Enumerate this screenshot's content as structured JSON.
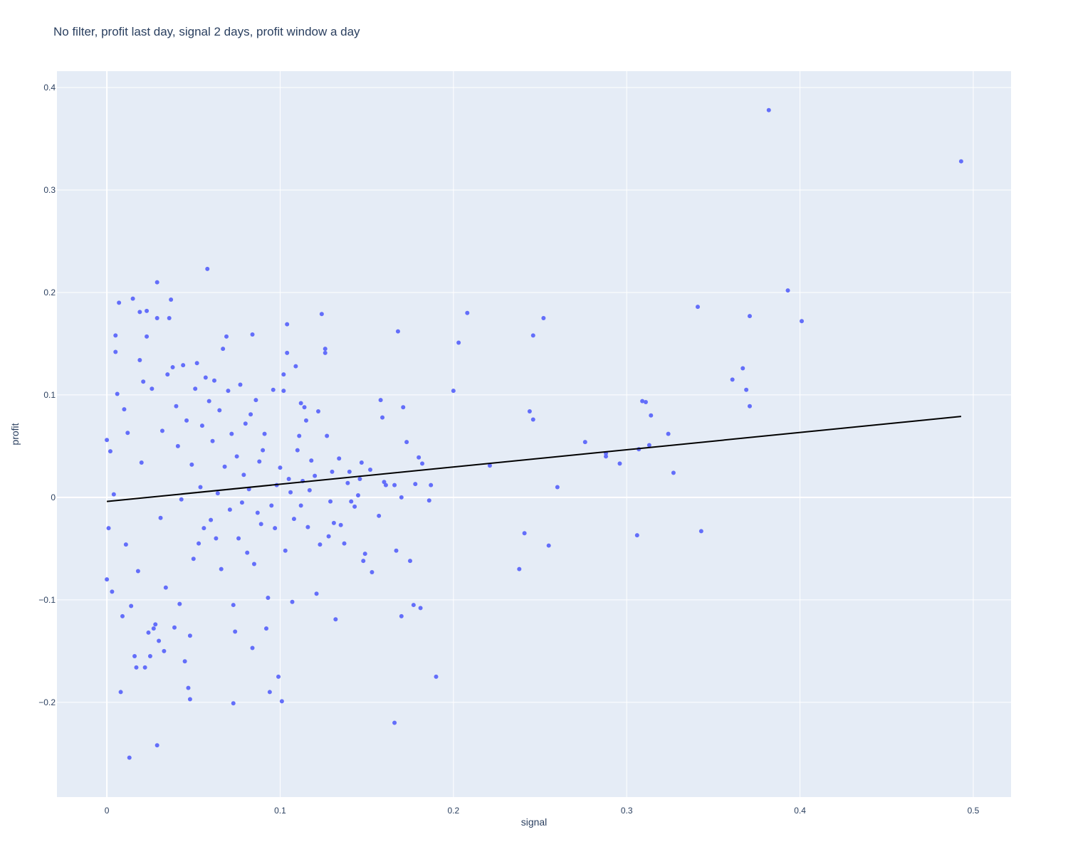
{
  "chart_data": {
    "type": "scatter",
    "title": "No filter, profit last day, signal 2 days, profit window a day",
    "xlabel": "signal",
    "ylabel": "profit",
    "xlim": [
      -0.0288,
      0.5218
    ],
    "ylim": [
      -0.2925,
      0.416
    ],
    "xticks": [
      0,
      0.1,
      0.2,
      0.3,
      0.4,
      0.5
    ],
    "xtick_labels": [
      "0",
      "0.1",
      "0.2",
      "0.3",
      "0.4",
      "0.5"
    ],
    "yticks": [
      -0.2,
      -0.1,
      0,
      0.1,
      0.2,
      0.3,
      0.4
    ],
    "ytick_labels": [
      "−0.2",
      "−0.1",
      "0",
      "0.1",
      "0.2",
      "0.3",
      "0.4"
    ],
    "grid": true,
    "legend": "none",
    "colors": {
      "plot_background": "#e5ecf6",
      "grid": "#ffffff",
      "marker": "#636efa",
      "trendline": "#000000",
      "text": "#2a3f5f"
    },
    "series": [
      {
        "mode": "markers",
        "points": [
          [
            0.382,
            0.378
          ],
          [
            0.493,
            0.328
          ],
          [
            0.393,
            0.202
          ],
          [
            0.401,
            0.172
          ],
          [
            0.341,
            0.186
          ],
          [
            0.371,
            0.177
          ],
          [
            0.367,
            0.126
          ],
          [
            0.361,
            0.115
          ],
          [
            0.369,
            0.105
          ],
          [
            0.371,
            0.089
          ],
          [
            0.309,
            0.094
          ],
          [
            0.311,
            0.093
          ],
          [
            0.314,
            0.08
          ],
          [
            0.324,
            0.062
          ],
          [
            0.313,
            0.051
          ],
          [
            0.307,
            0.047
          ],
          [
            0.327,
            0.024
          ],
          [
            0.343,
            -0.033
          ],
          [
            0.306,
            -0.037
          ],
          [
            0.296,
            0.033
          ],
          [
            0.288,
            0.043
          ],
          [
            0.288,
            0.04
          ],
          [
            0.276,
            0.054
          ],
          [
            0.26,
            0.01
          ],
          [
            0.255,
            -0.047
          ],
          [
            0.252,
            0.175
          ],
          [
            0.246,
            0.158
          ],
          [
            0.244,
            0.084
          ],
          [
            0.246,
            0.076
          ],
          [
            0.241,
            -0.035
          ],
          [
            0.238,
            -0.07
          ],
          [
            0.221,
            0.031
          ],
          [
            0.208,
            0.18
          ],
          [
            0.203,
            0.151
          ],
          [
            0.2,
            0.104
          ],
          [
            0.19,
            -0.175
          ],
          [
            0.187,
            0.012
          ],
          [
            0.186,
            -0.003
          ],
          [
            0.182,
            0.033
          ],
          [
            0.181,
            -0.108
          ],
          [
            0.18,
            0.039
          ],
          [
            0.178,
            0.013
          ],
          [
            0.177,
            -0.105
          ],
          [
            0.175,
            -0.062
          ],
          [
            0.173,
            0.054
          ],
          [
            0.171,
            0.088
          ],
          [
            0.17,
            0.0
          ],
          [
            0.17,
            -0.116
          ],
          [
            0.168,
            0.162
          ],
          [
            0.167,
            -0.052
          ],
          [
            0.166,
            0.012
          ],
          [
            0.166,
            -0.22
          ],
          [
            0.161,
            0.012
          ],
          [
            0.16,
            0.015
          ],
          [
            0.159,
            0.078
          ],
          [
            0.158,
            0.095
          ],
          [
            0.157,
            -0.018
          ],
          [
            0.153,
            -0.073
          ],
          [
            0.152,
            0.027
          ],
          [
            0.149,
            -0.055
          ],
          [
            0.148,
            -0.062
          ],
          [
            0.147,
            0.034
          ],
          [
            0.146,
            0.018
          ],
          [
            0.145,
            0.002
          ],
          [
            0.143,
            -0.009
          ],
          [
            0.141,
            -0.004
          ],
          [
            0.14,
            0.025
          ],
          [
            0.139,
            0.014
          ],
          [
            0.137,
            -0.045
          ],
          [
            0.135,
            -0.027
          ],
          [
            0.134,
            0.038
          ],
          [
            0.132,
            -0.119
          ],
          [
            0.131,
            -0.025
          ],
          [
            0.13,
            0.025
          ],
          [
            0.129,
            -0.004
          ],
          [
            0.128,
            -0.038
          ],
          [
            0.127,
            0.06
          ],
          [
            0.126,
            0.145
          ],
          [
            0.126,
            0.141
          ],
          [
            0.124,
            0.179
          ],
          [
            0.123,
            -0.046
          ],
          [
            0.122,
            0.084
          ],
          [
            0.121,
            -0.094
          ],
          [
            0.12,
            0.021
          ],
          [
            0.118,
            0.036
          ],
          [
            0.117,
            0.007
          ],
          [
            0.116,
            -0.029
          ],
          [
            0.115,
            0.075
          ],
          [
            0.114,
            0.088
          ],
          [
            0.113,
            0.016
          ],
          [
            0.112,
            0.092
          ],
          [
            0.112,
            -0.008
          ],
          [
            0.111,
            0.06
          ],
          [
            0.11,
            0.046
          ],
          [
            0.109,
            0.128
          ],
          [
            0.108,
            -0.021
          ],
          [
            0.107,
            -0.102
          ],
          [
            0.106,
            0.005
          ],
          [
            0.105,
            0.018
          ],
          [
            0.104,
            0.141
          ],
          [
            0.104,
            0.169
          ],
          [
            0.103,
            -0.052
          ],
          [
            0.102,
            0.12
          ],
          [
            0.102,
            0.104
          ],
          [
            0.101,
            -0.199
          ],
          [
            0.1,
            0.029
          ],
          [
            0.099,
            -0.175
          ],
          [
            0.098,
            0.012
          ],
          [
            0.097,
            -0.03
          ],
          [
            0.096,
            0.105
          ],
          [
            0.095,
            -0.008
          ],
          [
            0.094,
            -0.19
          ],
          [
            0.093,
            -0.098
          ],
          [
            0.092,
            -0.128
          ],
          [
            0.091,
            0.062
          ],
          [
            0.09,
            0.046
          ],
          [
            0.089,
            -0.026
          ],
          [
            0.088,
            0.035
          ],
          [
            0.087,
            -0.015
          ],
          [
            0.086,
            0.095
          ],
          [
            0.085,
            -0.065
          ],
          [
            0.084,
            -0.147
          ],
          [
            0.084,
            0.159
          ],
          [
            0.083,
            0.081
          ],
          [
            0.082,
            0.008
          ],
          [
            0.081,
            -0.054
          ],
          [
            0.08,
            0.072
          ],
          [
            0.079,
            0.022
          ],
          [
            0.078,
            -0.005
          ],
          [
            0.077,
            0.11
          ],
          [
            0.076,
            -0.04
          ],
          [
            0.075,
            0.04
          ],
          [
            0.074,
            -0.131
          ],
          [
            0.073,
            -0.201
          ],
          [
            0.073,
            -0.105
          ],
          [
            0.072,
            0.062
          ],
          [
            0.071,
            -0.012
          ],
          [
            0.07,
            0.104
          ],
          [
            0.069,
            0.157
          ],
          [
            0.068,
            0.03
          ],
          [
            0.067,
            0.145
          ],
          [
            0.066,
            -0.07
          ],
          [
            0.065,
            0.085
          ],
          [
            0.064,
            0.004
          ],
          [
            0.063,
            -0.04
          ],
          [
            0.062,
            0.114
          ],
          [
            0.061,
            0.055
          ],
          [
            0.06,
            -0.022
          ],
          [
            0.059,
            0.094
          ],
          [
            0.058,
            0.223
          ],
          [
            0.057,
            0.117
          ],
          [
            0.056,
            -0.03
          ],
          [
            0.055,
            0.07
          ],
          [
            0.054,
            0.01
          ],
          [
            0.053,
            -0.045
          ],
          [
            0.052,
            0.131
          ],
          [
            0.051,
            0.106
          ],
          [
            0.05,
            -0.06
          ],
          [
            0.049,
            0.032
          ],
          [
            0.048,
            -0.135
          ],
          [
            0.048,
            -0.197
          ],
          [
            0.047,
            -0.186
          ],
          [
            0.046,
            0.075
          ],
          [
            0.045,
            -0.16
          ],
          [
            0.044,
            0.129
          ],
          [
            0.043,
            -0.002
          ],
          [
            0.042,
            -0.104
          ],
          [
            0.041,
            0.05
          ],
          [
            0.04,
            0.089
          ],
          [
            0.039,
            -0.127
          ],
          [
            0.038,
            0.127
          ],
          [
            0.037,
            0.193
          ],
          [
            0.036,
            0.175
          ],
          [
            0.035,
            0.12
          ],
          [
            0.034,
            -0.088
          ],
          [
            0.033,
            -0.15
          ],
          [
            0.032,
            0.065
          ],
          [
            0.031,
            -0.02
          ],
          [
            0.03,
            -0.14
          ],
          [
            0.029,
            0.175
          ],
          [
            0.029,
            0.21
          ],
          [
            0.029,
            -0.242
          ],
          [
            0.028,
            -0.124
          ],
          [
            0.027,
            -0.128
          ],
          [
            0.026,
            0.106
          ],
          [
            0.025,
            -0.155
          ],
          [
            0.024,
            -0.132
          ],
          [
            0.023,
            0.182
          ],
          [
            0.023,
            0.157
          ],
          [
            0.022,
            -0.166
          ],
          [
            0.021,
            0.113
          ],
          [
            0.02,
            0.034
          ],
          [
            0.019,
            0.134
          ],
          [
            0.019,
            0.181
          ],
          [
            0.018,
            -0.072
          ],
          [
            0.017,
            -0.166
          ],
          [
            0.016,
            -0.155
          ],
          [
            0.015,
            0.194
          ],
          [
            0.014,
            -0.106
          ],
          [
            0.013,
            -0.254
          ],
          [
            0.012,
            0.063
          ],
          [
            0.011,
            -0.046
          ],
          [
            0.01,
            0.086
          ],
          [
            0.009,
            -0.116
          ],
          [
            0.008,
            -0.19
          ],
          [
            0.007,
            0.19
          ],
          [
            0.006,
            0.101
          ],
          [
            0.005,
            0.158
          ],
          [
            0.005,
            0.142
          ],
          [
            0.004,
            0.003
          ],
          [
            0.003,
            -0.092
          ],
          [
            0.002,
            0.045
          ],
          [
            0.001,
            -0.03
          ],
          [
            0.0,
            0.056
          ],
          [
            0.0,
            -0.08
          ]
        ]
      },
      {
        "mode": "lines",
        "points": [
          [
            0.0,
            -0.004
          ],
          [
            0.493,
            0.079
          ]
        ]
      }
    ]
  }
}
